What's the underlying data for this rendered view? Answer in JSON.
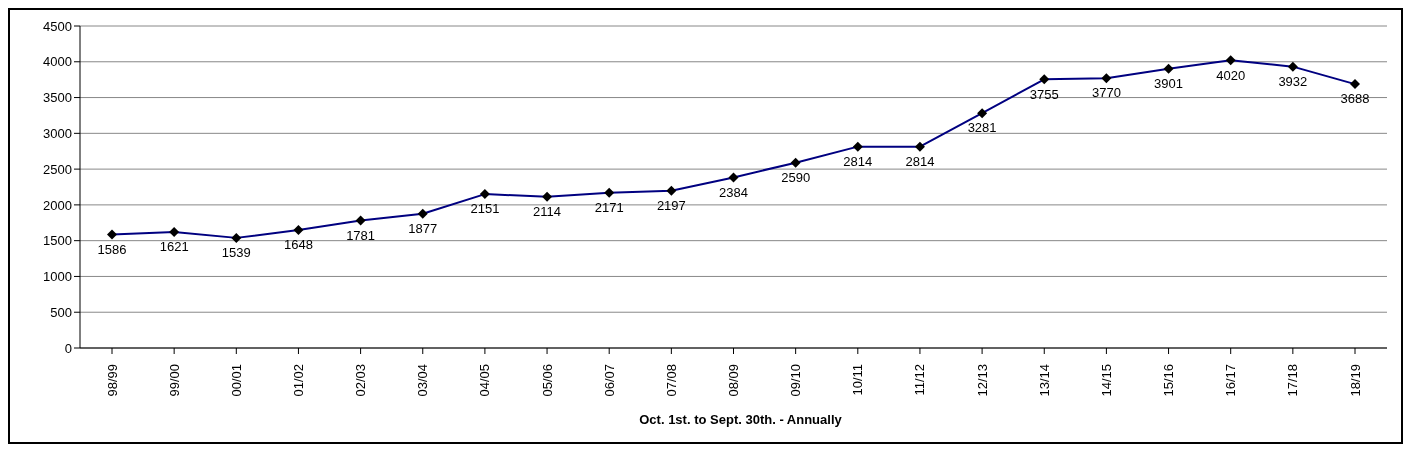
{
  "chart_data": {
    "type": "line",
    "xlabel": "Oct. 1st. to Sept. 30th. - Annually",
    "categories": [
      "98/99",
      "99/00",
      "00/01",
      "01/02",
      "02/03",
      "03/04",
      "04/05",
      "05/06",
      "06/07",
      "07/08",
      "08/09",
      "09/10",
      "10/11",
      "11/12",
      "12/13",
      "13/14",
      "14/15",
      "15/16",
      "16/17",
      "17/18",
      "18/19"
    ],
    "values": [
      1586,
      1621,
      1539,
      1648,
      1781,
      1877,
      2151,
      2114,
      2171,
      2197,
      2384,
      2590,
      2814,
      2814,
      3281,
      3755,
      3770,
      3901,
      4020,
      3932,
      3688
    ],
    "color": "#000080",
    "ylim": [
      0,
      4500
    ],
    "yticks": [
      0,
      500,
      1000,
      1500,
      2000,
      2500,
      3000,
      3500,
      4000,
      4500
    ],
    "grid": "y",
    "marker": "diamond",
    "line_style": "solid",
    "data_labels": true
  }
}
